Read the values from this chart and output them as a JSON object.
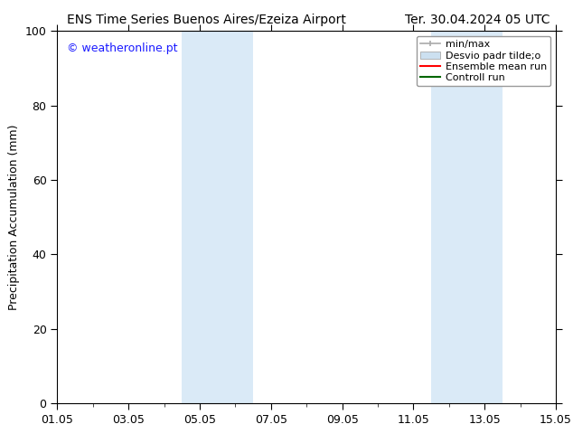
{
  "title_left": "ENS Time Series Buenos Aires/Ezeiza Airport",
  "title_right": "Ter. 30.04.2024 05 UTC",
  "ylabel": "Precipitation Accumulation (mm)",
  "watermark": "© weatheronline.pt",
  "ylim": [
    0,
    100
  ],
  "yticks": [
    0,
    20,
    40,
    60,
    80,
    100
  ],
  "xlim": [
    0,
    14
  ],
  "xtick_labels": [
    "01.05",
    "03.05",
    "05.05",
    "07.05",
    "09.05",
    "11.05",
    "13.05",
    "15.05"
  ],
  "xtick_positions": [
    0,
    2,
    4,
    6,
    8,
    10,
    12,
    14
  ],
  "shaded_bands": [
    {
      "xmin": 3.5,
      "xmax": 5.5
    },
    {
      "xmin": 10.5,
      "xmax": 12.5
    }
  ],
  "shade_color": "#daeaf7",
  "background_color": "#ffffff",
  "legend_labels": [
    "min/max",
    "Desvio padr tilde;o",
    "Ensemble mean run",
    "Controll run"
  ],
  "minmax_color": "#aaaaaa",
  "std_color": "#cce0f0",
  "ensemble_color": "#ff0000",
  "control_color": "#006600",
  "watermark_color": "#1a1aff",
  "title_fontsize": 10,
  "ylabel_fontsize": 9,
  "tick_fontsize": 9,
  "legend_fontsize": 8,
  "watermark_fontsize": 9
}
